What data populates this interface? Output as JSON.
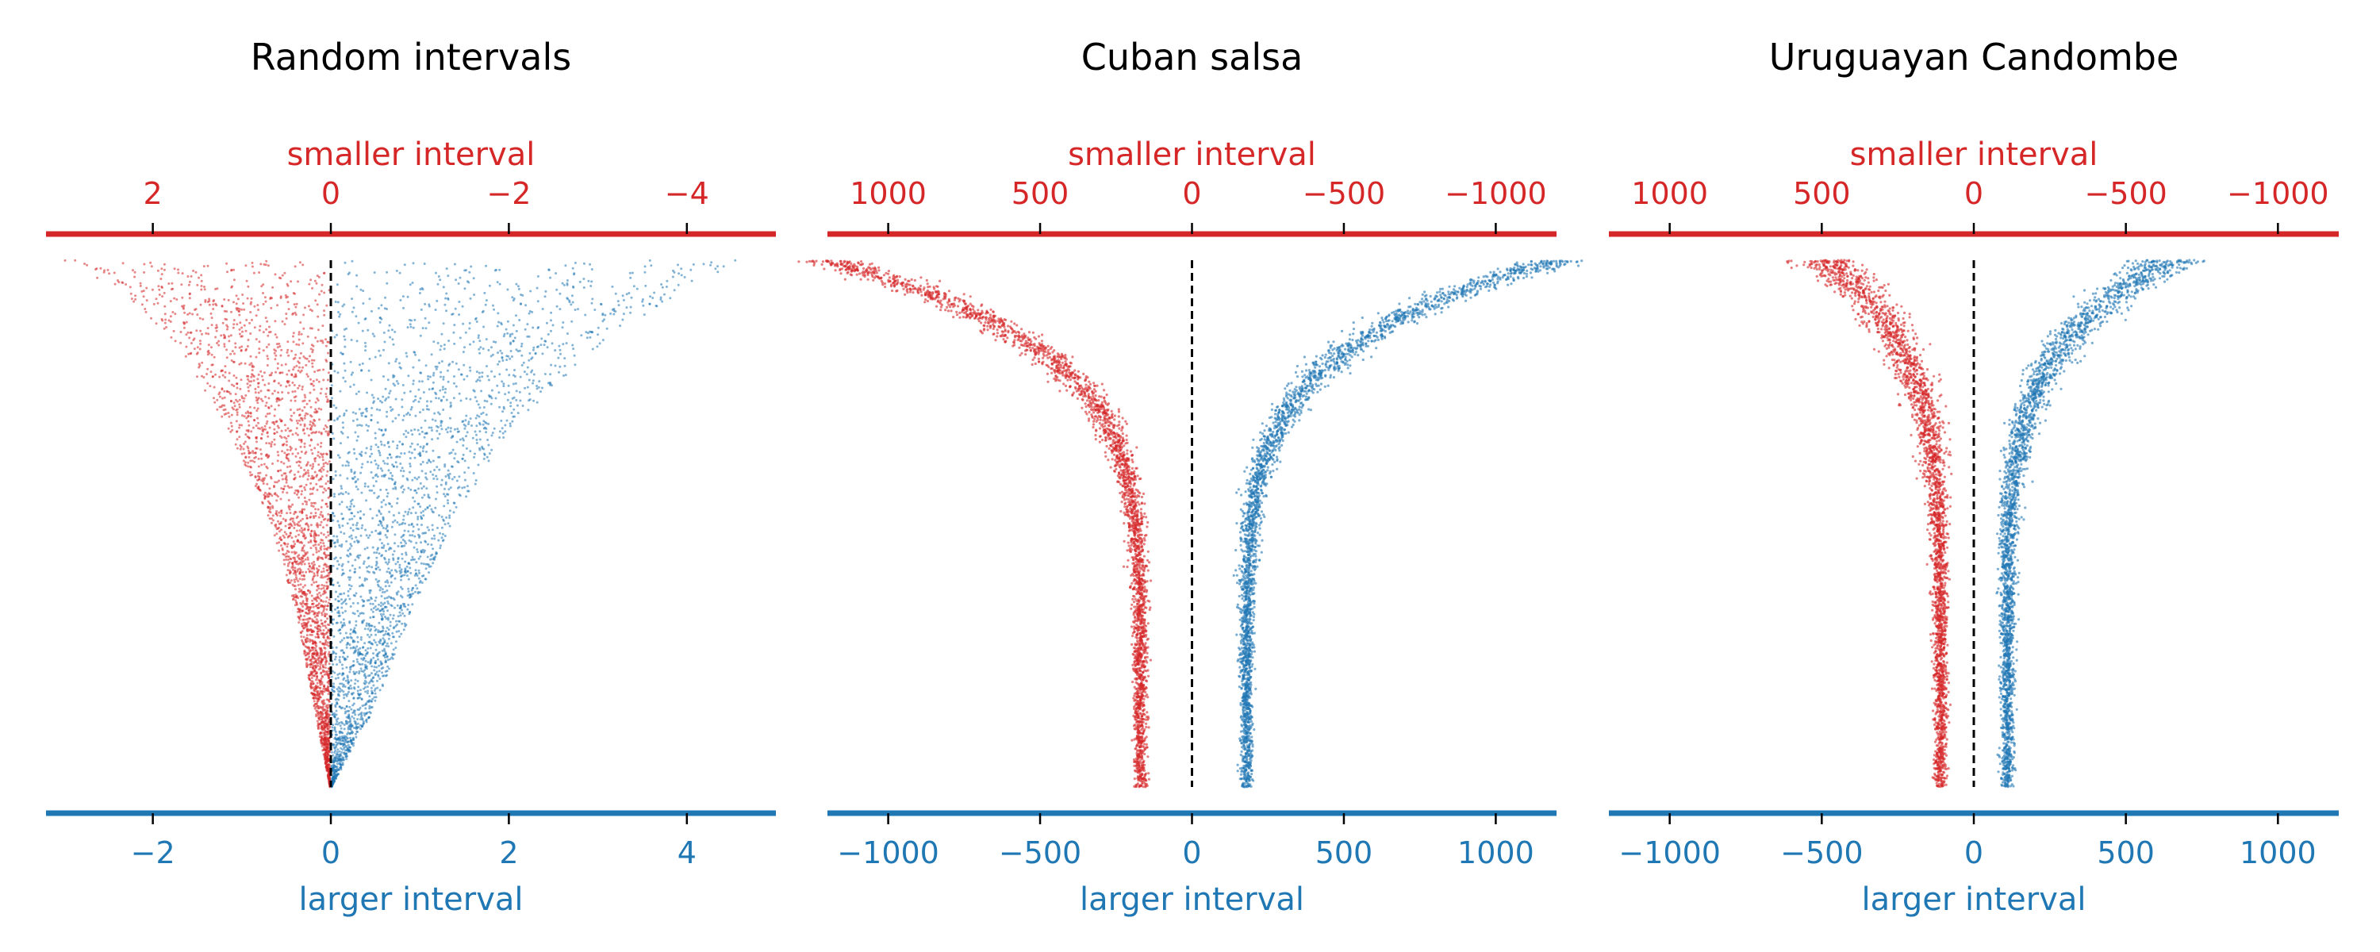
{
  "figure": {
    "colors": {
      "smaller": "#d62728",
      "larger": "#1f77b4",
      "zero_line": "#000000"
    }
  },
  "chart_data": [
    {
      "type": "scatter",
      "title": "Random intervals",
      "top_axis": {
        "label": "smaller interval",
        "xlim": [
          3.2,
          -5.0
        ],
        "ticks": [
          2,
          0,
          -2,
          -4
        ],
        "tick_labels": [
          "2",
          "0",
          "−2",
          "−4"
        ]
      },
      "bottom_axis": {
        "label": "larger interval",
        "xlim": [
          -3.2,
          5.0
        ],
        "ticks": [
          -2,
          0,
          2,
          4
        ],
        "tick_labels": [
          "−2",
          "0",
          "2",
          "4"
        ]
      },
      "zero_line": 0,
      "series": [
        {
          "description": "smaller interval (red)",
          "envelope": [
            [
              0,
              1.0
            ],
            [
              0.02,
              0.92
            ],
            [
              0.08,
              0.75
            ],
            [
              0.18,
              0.55
            ],
            [
              0.32,
              0.38
            ],
            [
              0.5,
              0.22
            ],
            [
              0.68,
              0.12
            ],
            [
              0.85,
              0.06
            ],
            [
              1.0,
              0.0
            ]
          ],
          "tail": 3.0
        },
        {
          "description": "larger interval (blue)",
          "envelope": [
            [
              0,
              1.0
            ],
            [
              0.02,
              0.92
            ],
            [
              0.08,
              0.78
            ],
            [
              0.18,
              0.6
            ],
            [
              0.32,
              0.42
            ],
            [
              0.5,
              0.28
            ],
            [
              0.68,
              0.18
            ],
            [
              0.85,
              0.1
            ],
            [
              1.0,
              0.0
            ]
          ],
          "tail": 4.8
        }
      ]
    },
    {
      "type": "scatter",
      "title": "Cuban salsa",
      "top_axis": {
        "label": "smaller interval",
        "xlim": [
          1200,
          -1200
        ],
        "ticks": [
          1000,
          500,
          0,
          -500,
          -1000
        ],
        "tick_labels": [
          "1000",
          "500",
          "0",
          "−500",
          "−1000"
        ]
      },
      "bottom_axis": {
        "label": "larger interval",
        "xlim": [
          -1200,
          1200
        ],
        "ticks": [
          -1000,
          -500,
          0,
          500,
          1000
        ],
        "tick_labels": [
          "−1000",
          "−500",
          "0",
          "500",
          "1000"
        ]
      },
      "zero_line": 0
    },
    {
      "type": "scatter",
      "title": "Uruguayan Candombe",
      "top_axis": {
        "label": "smaller interval",
        "xlim": [
          1200,
          -1200
        ],
        "ticks": [
          1000,
          500,
          0,
          -500,
          -1000
        ],
        "tick_labels": [
          "1000",
          "500",
          "0",
          "−500",
          "−1000"
        ]
      },
      "bottom_axis": {
        "label": "larger interval",
        "xlim": [
          -1200,
          1200
        ],
        "ticks": [
          -1000,
          -500,
          0,
          500,
          1000
        ],
        "tick_labels": [
          "−1000",
          "−500",
          "0",
          "500",
          "1000"
        ]
      },
      "zero_line": 0
    }
  ]
}
